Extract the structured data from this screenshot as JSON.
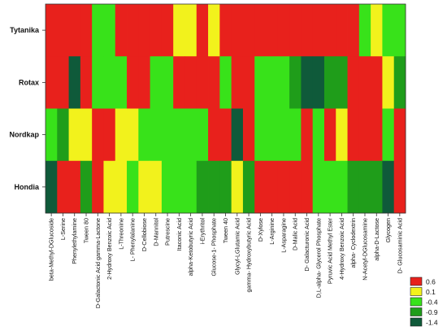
{
  "chart_data": {
    "type": "heatmap",
    "rows": [
      "Tytanika",
      "Rotax",
      "Nordkap",
      "Hondia"
    ],
    "columns": [
      "beta-Methyl-DGlucoside",
      "L-Serine",
      "Phenylethylamine",
      "Tween 80",
      "D-Galactonic Acid gamma-Lactone",
      "2-Hydroxy Benzoic Acid",
      "L-Threonine",
      "L- Phenylalanine",
      "D-Cellobiose",
      "D-Mannitol",
      "Putrescine",
      "Itaconic Acid",
      "alpha-Ketobutyric Acid",
      "i-Erythritol",
      "Glucose-1- Phosphate",
      "Tween 40",
      "Glycyl-LGlutamic Acid",
      "gamma- Hydroxybutyric Acid",
      "D-Xylose",
      "L-Arginine",
      "L-Asparagine",
      "D-Malic Acid",
      "D- Galacturonic Acid",
      "D,L-alpha- Glycerol Phosphate",
      "Pyruvic Acid Methyl Ester",
      "4-Hydroxy Benzoic Acid",
      "alpha- Cyclodextrin",
      "N-Acetyl-DGlucosamine",
      "alpha-D-Lactose",
      "Glycogen",
      "D- Glucosaminic Acid"
    ],
    "values": [
      [
        0.6,
        0.6,
        0.6,
        0.6,
        -0.4,
        -0.4,
        0.6,
        0.6,
        0.6,
        0.6,
        0.6,
        0.1,
        0.1,
        0.6,
        0.1,
        0.6,
        0.6,
        0.6,
        0.6,
        0.6,
        0.6,
        0.6,
        0.6,
        0.6,
        0.6,
        0.6,
        0.6,
        -0.4,
        0.1,
        -0.4,
        -0.4
      ],
      [
        0.6,
        0.6,
        -1.4,
        0.6,
        -0.4,
        -0.4,
        -0.4,
        0.6,
        0.6,
        -0.4,
        -0.4,
        0.6,
        0.6,
        0.6,
        0.6,
        -0.4,
        0.6,
        0.6,
        -0.4,
        -0.4,
        -0.4,
        -0.9,
        -1.4,
        -1.4,
        -0.9,
        -0.9,
        0.6,
        0.6,
        0.6,
        0.1,
        -0.9
      ],
      [
        -0.4,
        -0.9,
        0.1,
        0.1,
        0.6,
        0.6,
        0.1,
        0.1,
        -0.4,
        -0.4,
        -0.4,
        -0.4,
        -0.4,
        -0.4,
        0.6,
        0.6,
        -1.4,
        0.6,
        -0.4,
        -0.4,
        -0.4,
        -0.4,
        0.6,
        -0.4,
        0.6,
        0.1,
        0.6,
        0.6,
        0.6,
        -0.4,
        0.6
      ],
      [
        -1.4,
        0.6,
        0.6,
        -0.9,
        0.6,
        0.1,
        0.1,
        -0.4,
        0.1,
        0.1,
        -0.4,
        -0.4,
        -0.4,
        -0.9,
        -0.9,
        -0.9,
        0.1,
        -0.9,
        0.6,
        0.6,
        0.6,
        0.6,
        0.6,
        -0.4,
        -0.4,
        -0.4,
        -0.9,
        -0.9,
        -0.9,
        -1.4,
        0.6
      ]
    ],
    "legend": [
      {
        "label": "0.6",
        "color": "#e8211c"
      },
      {
        "label": "0.1",
        "color": "#f2f21c"
      },
      {
        "label": "-0.4",
        "color": "#38e21a"
      },
      {
        "label": "-0.9",
        "color": "#1f9d1a"
      },
      {
        "label": "-1.4",
        "color": "#0f5a3a"
      }
    ],
    "legend_placement": "bottom-right",
    "grid": false
  }
}
